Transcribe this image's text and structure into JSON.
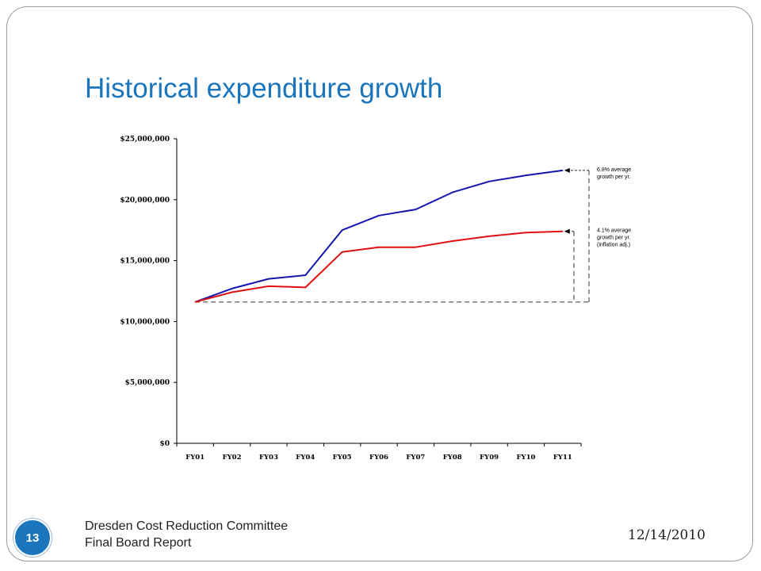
{
  "slide": {
    "title": "Historical expenditure growth",
    "footer_line1": "Dresden Cost Reduction Committee",
    "footer_line2": "Final Board Report",
    "date": "12/14/2010",
    "page_number": "13",
    "title_color": "#1b75bc",
    "badge_color": "#1b75bc"
  },
  "chart_data": {
    "type": "line",
    "categories": [
      "FY01",
      "FY02",
      "FY03",
      "FY04",
      "FY05",
      "FY06",
      "FY07",
      "FY08",
      "FY09",
      "FY10",
      "FY11"
    ],
    "ylim": [
      0,
      25000000
    ],
    "yticks": [
      0,
      5000000,
      10000000,
      15000000,
      20000000,
      25000000
    ],
    "ytick_labels": [
      "$0",
      "$5,000,000",
      "$10,000,000",
      "$15,000,000",
      "$20,000,000",
      "$25,000,000"
    ],
    "grid": false,
    "series": [
      {
        "color": "#1515b0",
        "values": [
          11600000,
          12700000,
          13500000,
          13800000,
          17500000,
          18700000,
          19200000,
          20600000,
          21500000,
          22000000,
          22400000
        ]
      },
      {
        "color": "#e01010",
        "values": [
          11600000,
          12400000,
          12900000,
          12800000,
          15700000,
          16100000,
          16100000,
          16600000,
          17000000,
          17300000,
          17400000
        ]
      }
    ],
    "baseline": 11600000,
    "annotations": [
      {
        "lines": [
          "6.8% average",
          "growth per yr."
        ],
        "series_index": 0
      },
      {
        "lines": [
          "4.1% average",
          "growth per yr.",
          "(inflation adj.)"
        ],
        "series_index": 1
      }
    ]
  }
}
